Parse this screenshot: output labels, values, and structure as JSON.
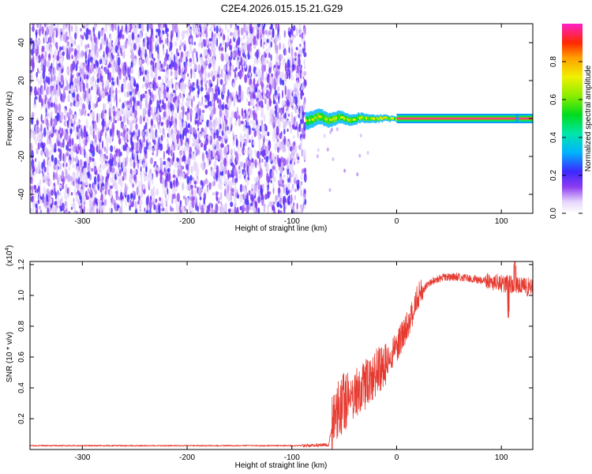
{
  "title": "C2E4.2026.015.15.21.G29",
  "chart_data": [
    {
      "type": "heatmap",
      "name": "spectrogram",
      "xlabel": "Height of straight line (km)",
      "ylabel": "Frequency (Hz)",
      "xlim": [
        -350,
        130
      ],
      "ylim": [
        -50,
        50
      ],
      "xticks": [
        -300,
        -200,
        -100,
        0,
        100
      ],
      "yticks": [
        -40,
        -20,
        0,
        20,
        40
      ],
      "colorbar": {
        "label": "Normalized spectral amplitude",
        "range": [
          0,
          1
        ],
        "ticks": [
          "0.0",
          "0.2",
          "0.4",
          "0.6",
          "0.8"
        ],
        "tick_values": [
          0,
          0.2,
          0.4,
          0.6,
          0.8
        ]
      },
      "noise_region_x": [
        -350,
        -87
      ],
      "signal_start_x": -87,
      "clean_tone_start_x": 0,
      "tone_frequency_hz": 0,
      "tone_amplitude": 1.0,
      "transition_tone_amplitude": 0.7
    },
    {
      "type": "line",
      "name": "snr",
      "xlabel": "Height of straight line (km)",
      "ylabel": "SNR (10 * v/v)",
      "y_multiplier": "(x10",
      "y_multiplier_exp": "4",
      "y_multiplier_close": ")",
      "xlim": [
        -350,
        130
      ],
      "ylim": [
        0,
        1.22
      ],
      "xticks": [
        -300,
        -200,
        -100,
        0,
        100
      ],
      "yticks": [
        "0.2",
        "0.4",
        "0.6",
        "0.8",
        "1.0",
        "1.2"
      ],
      "ytick_values": [
        0.2,
        0.4,
        0.6,
        0.8,
        1.0,
        1.2
      ],
      "color": "#e63a30",
      "series_knots_x": [
        -350,
        -90,
        -65,
        -60,
        -50,
        -40,
        -30,
        -20,
        -10,
        0,
        10,
        20,
        30,
        45,
        60,
        80,
        100,
        130
      ],
      "series_knots_y": [
        0.025,
        0.025,
        0.03,
        0.2,
        0.3,
        0.36,
        0.42,
        0.5,
        0.57,
        0.66,
        0.8,
        0.98,
        1.08,
        1.12,
        1.12,
        1.1,
        1.08,
        1.05
      ]
    }
  ]
}
